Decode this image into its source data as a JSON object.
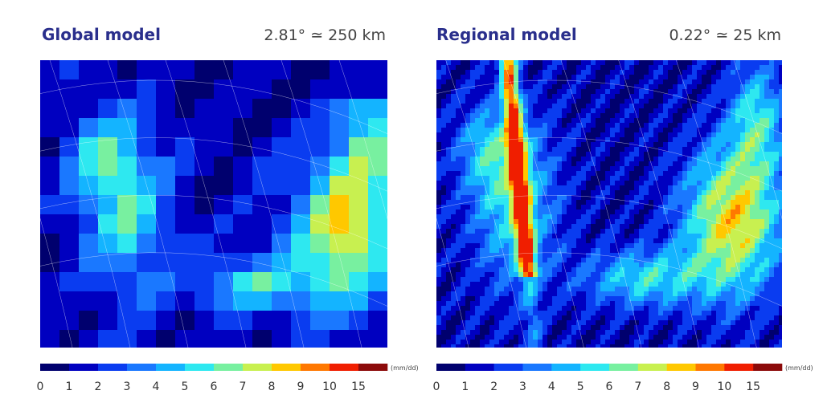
{
  "panels": [
    {
      "title": "Global model",
      "resolution": "2.81° ≃ 250 km"
    },
    {
      "title": "Regional model",
      "resolution": "0.22° ≃ 25 km"
    }
  ],
  "colorbar": {
    "ticks": [
      0,
      1,
      2,
      3,
      4,
      5,
      6,
      7,
      8,
      9,
      10,
      15
    ],
    "colors": [
      "#00006e",
      "#0000c0",
      "#0a3cf0",
      "#1a78ff",
      "#14b4ff",
      "#2ee8f0",
      "#78f0a0",
      "#c8f050",
      "#ffc800",
      "#ff7800",
      "#f01e00",
      "#8c0a0a"
    ],
    "unit": "(mm/dd)"
  }
}
